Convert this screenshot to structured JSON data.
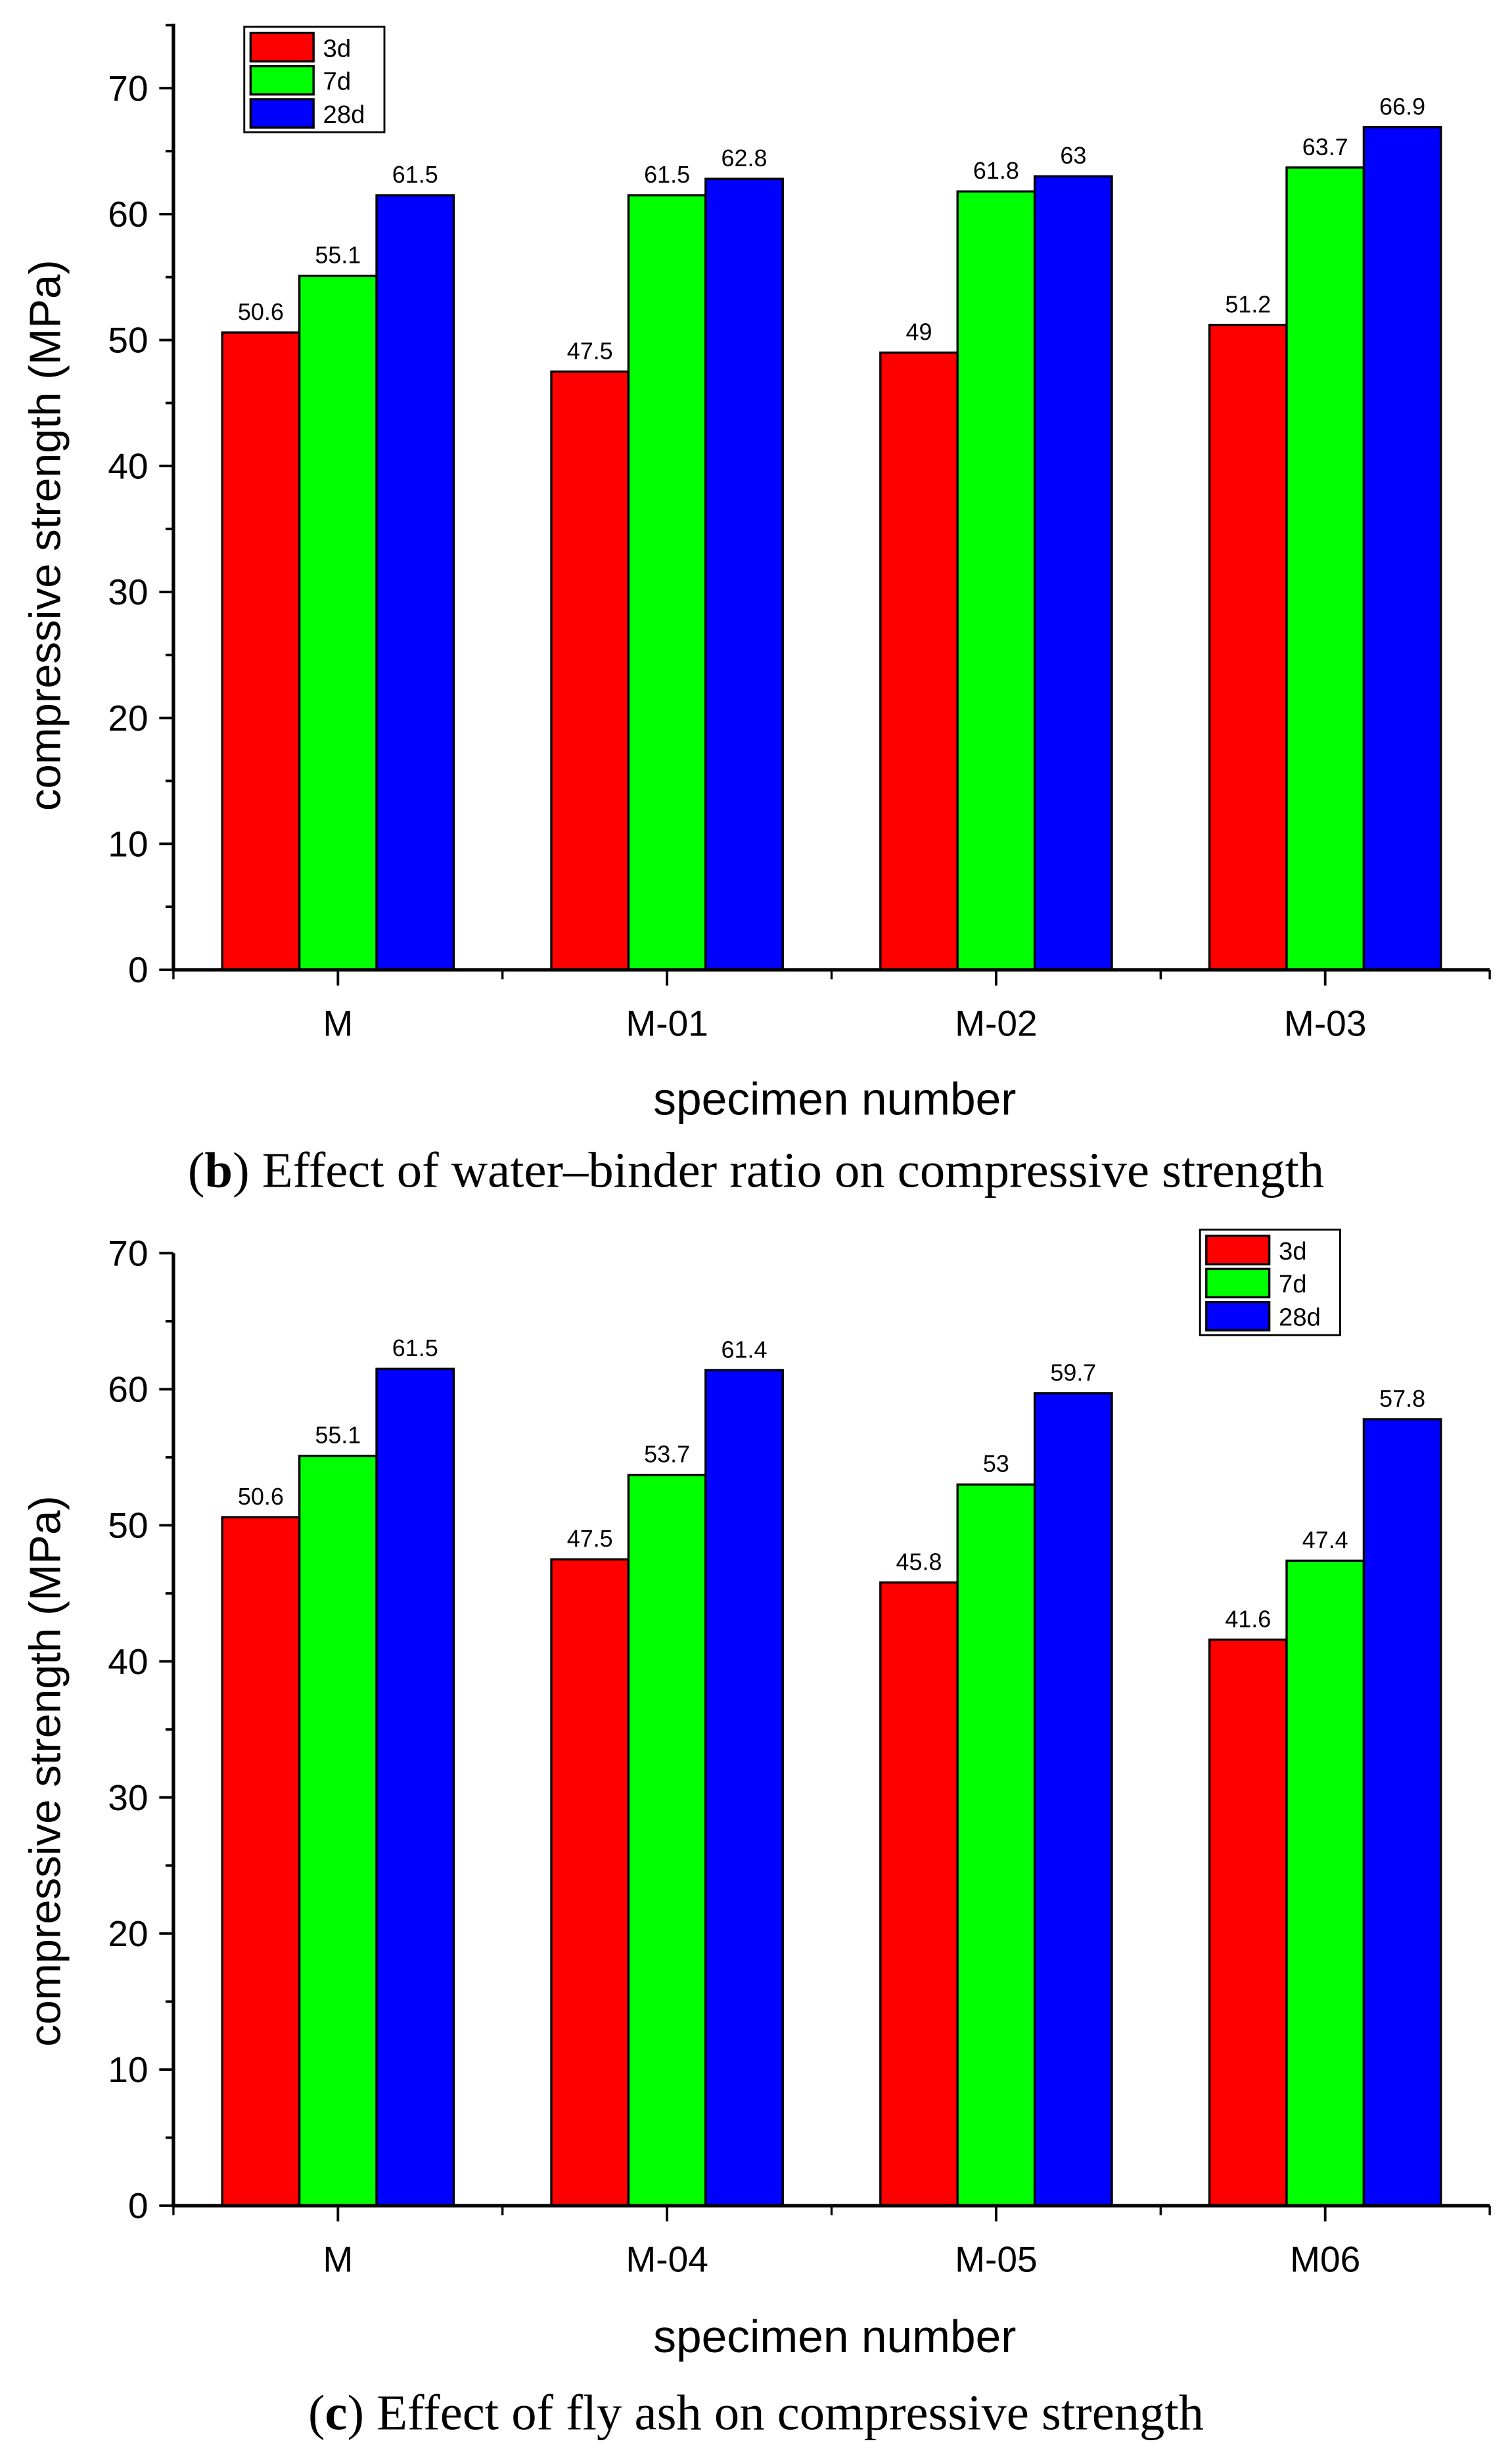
{
  "chart_data": [
    {
      "type": "bar",
      "id": "b",
      "caption_letter": "b",
      "caption_text": ") Effect of water–binder ratio on compressive strength",
      "caption_open": "(",
      "xlabel": "specimen number",
      "ylabel": "compressive strength (MPa)",
      "ylim": [
        0,
        75
      ],
      "yticks": [
        0,
        10,
        20,
        30,
        40,
        50,
        60,
        70
      ],
      "categories": [
        "M",
        "M-01",
        "M-02",
        "M-03"
      ],
      "series": [
        {
          "name": "3d",
          "color": "#ff0000",
          "values": [
            50.6,
            47.5,
            49,
            51.2
          ],
          "labels": [
            "50.6",
            "47.5",
            "49",
            "51.2"
          ]
        },
        {
          "name": "7d",
          "color": "#00ff00",
          "values": [
            55.1,
            61.5,
            61.8,
            63.7
          ],
          "labels": [
            "55.1",
            "61.5",
            "61.8",
            "63.7"
          ]
        },
        {
          "name": "28d",
          "color": "#0000ff",
          "values": [
            61.5,
            62.8,
            63,
            66.9
          ],
          "labels": [
            "61.5",
            "62.8",
            "63",
            "66.9"
          ]
        }
      ],
      "legend": "top-left",
      "grid": false
    },
    {
      "type": "bar",
      "id": "c",
      "caption_letter": "c",
      "caption_text": ") Effect of fly ash on compressive strength",
      "caption_open": "(",
      "xlabel": "specimen number",
      "ylabel": "compressive strength (MPa)",
      "ylim": [
        0,
        70
      ],
      "yticks": [
        0,
        10,
        20,
        30,
        40,
        50,
        60,
        70
      ],
      "categories": [
        "M",
        "M-04",
        "M-05",
        "M06"
      ],
      "series": [
        {
          "name": "3d",
          "color": "#ff0000",
          "values": [
            50.6,
            47.5,
            45.8,
            41.6
          ],
          "labels": [
            "50.6",
            "47.5",
            "45.8",
            "41.6"
          ]
        },
        {
          "name": "7d",
          "color": "#00ff00",
          "values": [
            55.1,
            53.7,
            53,
            47.4
          ],
          "labels": [
            "55.1",
            "53.7",
            "53",
            "47.4"
          ]
        },
        {
          "name": "28d",
          "color": "#0000ff",
          "values": [
            61.5,
            61.4,
            59.7,
            57.8
          ],
          "labels": [
            "61.5",
            "61.4",
            "59.7",
            "57.8"
          ]
        }
      ],
      "legend": "top-right",
      "grid": false
    }
  ]
}
